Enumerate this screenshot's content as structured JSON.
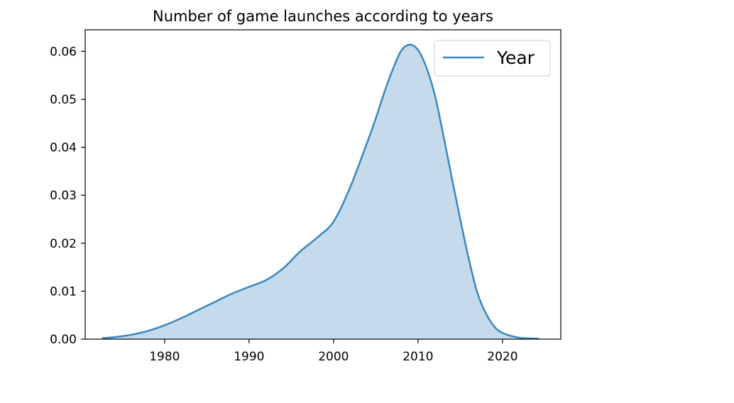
{
  "chart_data": {
    "type": "area",
    "title": "Number of game launches according to years",
    "xlabel": "",
    "ylabel": "",
    "xlim": [
      1970.6,
      1975.0
    ],
    "xticks": [
      1980,
      1990,
      2000,
      2010,
      2020
    ],
    "xtick_labels": [
      "1980",
      "1990",
      "2000",
      "2010",
      "2020"
    ],
    "ylim": [
      0,
      0.0645
    ],
    "yticks": [
      0.0,
      0.01,
      0.02,
      0.03,
      0.04,
      0.05,
      0.06
    ],
    "ytick_labels": [
      "0.00",
      "0.01",
      "0.02",
      "0.03",
      "0.04",
      "0.05",
      "0.06"
    ],
    "grid": false,
    "legend": {
      "position": "top-right",
      "entries": [
        "Year"
      ]
    },
    "colors": {
      "line": "#3a87c0",
      "fill": "#c5dbeb",
      "axes": "#000000"
    },
    "series": [
      {
        "name": "Year",
        "x": [
          1972.6,
          1974,
          1976,
          1978,
          1980,
          1982,
          1984,
          1986,
          1988,
          1990,
          1992,
          1994,
          1996,
          1998,
          2000,
          2002,
          2004,
          2005,
          2006,
          2007,
          2008,
          2009,
          2010,
          2011,
          2012,
          2013,
          2014,
          2015,
          2016,
          2017,
          2018,
          2019,
          2020,
          2022,
          2024.3
        ],
        "y": [
          0.0002,
          0.0004,
          0.0009,
          0.0017,
          0.0029,
          0.0044,
          0.0061,
          0.0078,
          0.0095,
          0.0109,
          0.0123,
          0.0147,
          0.0182,
          0.0211,
          0.0245,
          0.0318,
          0.0411,
          0.046,
          0.0514,
          0.0562,
          0.0601,
          0.0614,
          0.0603,
          0.0566,
          0.0508,
          0.0425,
          0.0336,
          0.025,
          0.0168,
          0.0098,
          0.0055,
          0.0027,
          0.0013,
          0.0003,
          0.0001
        ]
      }
    ]
  }
}
